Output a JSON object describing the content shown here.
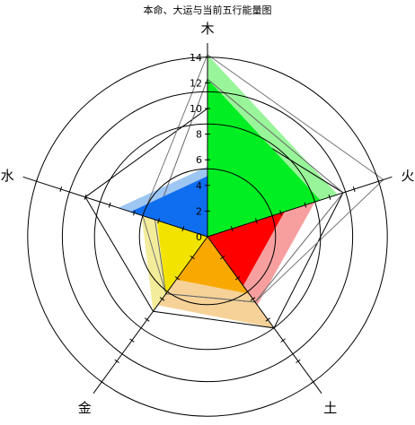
{
  "chart_data": {
    "type": "radar",
    "title": "本命、大运与当前五行能量图",
    "axes": [
      "木",
      "火",
      "土",
      "金",
      "水"
    ],
    "r_ticks": [
      0,
      2,
      4,
      6,
      8,
      10,
      12,
      14
    ],
    "rlim": [
      0,
      14
    ],
    "grid": true,
    "series": [
      {
        "values": [
          10,
          11.1,
          8.8,
          7.2,
          10
        ],
        "fill": "none",
        "stroke": "#000000"
      },
      {
        "values": [
          14.2,
          14.4,
          6.3,
          5.5,
          5.3
        ],
        "fill": "#e8e8e8",
        "stroke": "#777777"
      },
      {
        "values": [
          12.3,
          11.1,
          6.3,
          5.5,
          4.3
        ],
        "fill": "#bbbbbb",
        "stroke": "#666666"
      }
    ],
    "petals": [
      {
        "axis": "木",
        "color": "#00ee22",
        "light": "#99f599",
        "lightValue": 14.2,
        "value": 12.3
      },
      {
        "axis": "火",
        "color": "#ff0000",
        "light": "#f79f9f",
        "lightValue": 8.8,
        "value": 6.3
      },
      {
        "axis": "土",
        "color": "#f8a800",
        "light": "#f6d299",
        "lightValue": 8.8,
        "value": 5.5
      },
      {
        "axis": "金",
        "color": "#f2e400",
        "light": "#f3ec9a",
        "lightValue": 7.2,
        "value": 5.5
      },
      {
        "axis": "水",
        "color": "#0f6ef0",
        "light": "#9ec6f3",
        "lightValue": 7.3,
        "value": 6.3
      }
    ]
  }
}
